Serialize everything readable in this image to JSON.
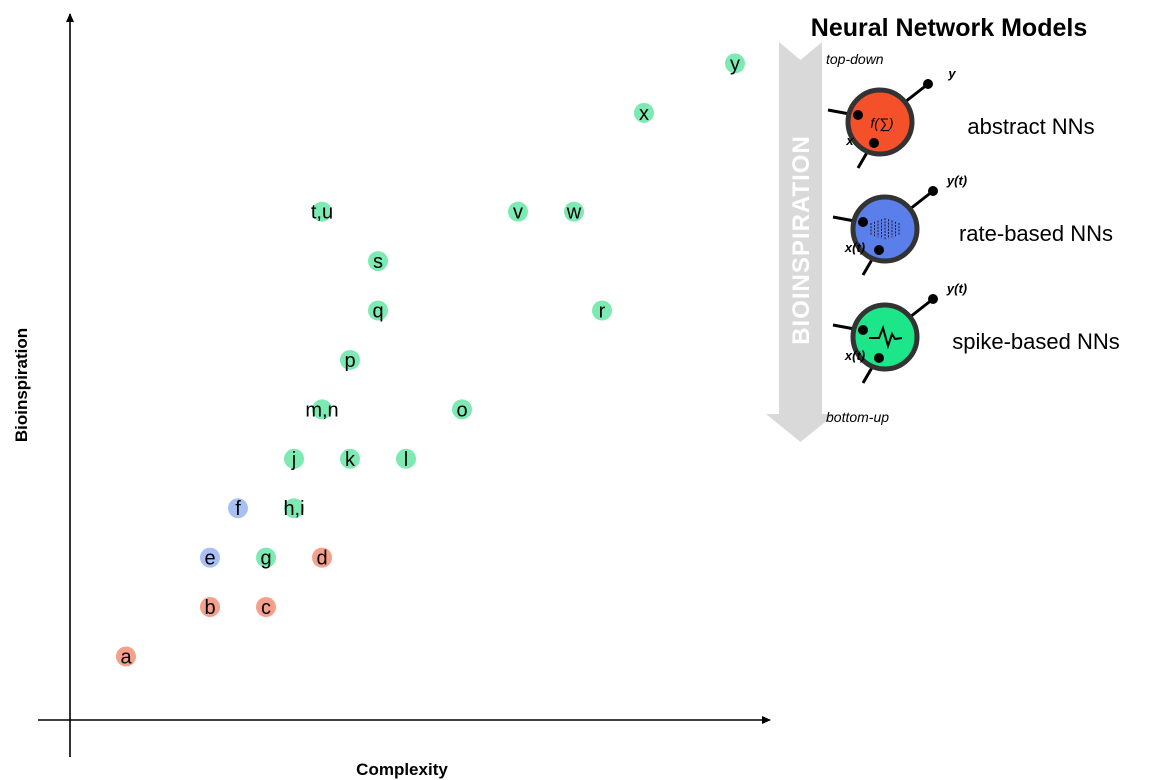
{
  "chart_data": {
    "type": "scatter",
    "xlabel": "Complexity",
    "ylabel": "Bioinspiration",
    "xlim": [
      0,
      100
    ],
    "ylim": [
      0,
      100
    ],
    "grid": false,
    "legend_position": "right",
    "colors": {
      "abstract": "#f5a08c",
      "rate": "#a9c1f2",
      "spike": "#7deab3"
    },
    "points": [
      {
        "label": "a",
        "x": 8,
        "y": 9,
        "group": "abstract"
      },
      {
        "label": "b",
        "x": 20,
        "y": 16,
        "group": "abstract"
      },
      {
        "label": "c",
        "x": 28,
        "y": 16,
        "group": "abstract"
      },
      {
        "label": "d",
        "x": 36,
        "y": 23,
        "group": "abstract"
      },
      {
        "label": "e",
        "x": 20,
        "y": 23,
        "group": "rate"
      },
      {
        "label": "f",
        "x": 24,
        "y": 30,
        "group": "rate"
      },
      {
        "label": "g",
        "x": 28,
        "y": 23,
        "group": "spike"
      },
      {
        "label": "h,i",
        "x": 32,
        "y": 30,
        "group": "spike"
      },
      {
        "label": "j",
        "x": 32,
        "y": 37,
        "group": "spike"
      },
      {
        "label": "k",
        "x": 40,
        "y": 37,
        "group": "spike"
      },
      {
        "label": "l",
        "x": 48,
        "y": 37,
        "group": "spike"
      },
      {
        "label": "m,n",
        "x": 36,
        "y": 44,
        "group": "spike"
      },
      {
        "label": "o",
        "x": 56,
        "y": 44,
        "group": "spike"
      },
      {
        "label": "p",
        "x": 40,
        "y": 51,
        "group": "spike"
      },
      {
        "label": "q",
        "x": 44,
        "y": 58,
        "group": "spike"
      },
      {
        "label": "r",
        "x": 76,
        "y": 58,
        "group": "spike"
      },
      {
        "label": "s",
        "x": 44,
        "y": 65,
        "group": "spike"
      },
      {
        "label": "t,u",
        "x": 36,
        "y": 72,
        "group": "spike"
      },
      {
        "label": "v",
        "x": 64,
        "y": 72,
        "group": "spike"
      },
      {
        "label": "w",
        "x": 72,
        "y": 72,
        "group": "spike"
      },
      {
        "label": "x",
        "x": 82,
        "y": 86,
        "group": "spike"
      },
      {
        "label": "y",
        "x": 95,
        "y": 93,
        "group": "spike"
      }
    ]
  },
  "legend": {
    "title": "Neural Network Models",
    "arrow_label": "BIOINSPIRATION",
    "top_label": "top-down",
    "bottom_label": "bottom-up",
    "arrow_color": "#d9d9d9",
    "models": [
      {
        "label": "abstract NNs",
        "color": "#f4502a",
        "input": "x",
        "output": "y",
        "icon": "sum-function-icon",
        "symbol": "f(∑)"
      },
      {
        "label": "rate-based NNs",
        "color": "#5b7fea",
        "input": "x(t)",
        "output": "y(t)",
        "icon": "spike-raster-icon"
      },
      {
        "label": "spike-based NNs",
        "color": "#1de58a",
        "input": "x(t)",
        "output": "y(t)",
        "icon": "spike-waveform-icon"
      }
    ]
  }
}
